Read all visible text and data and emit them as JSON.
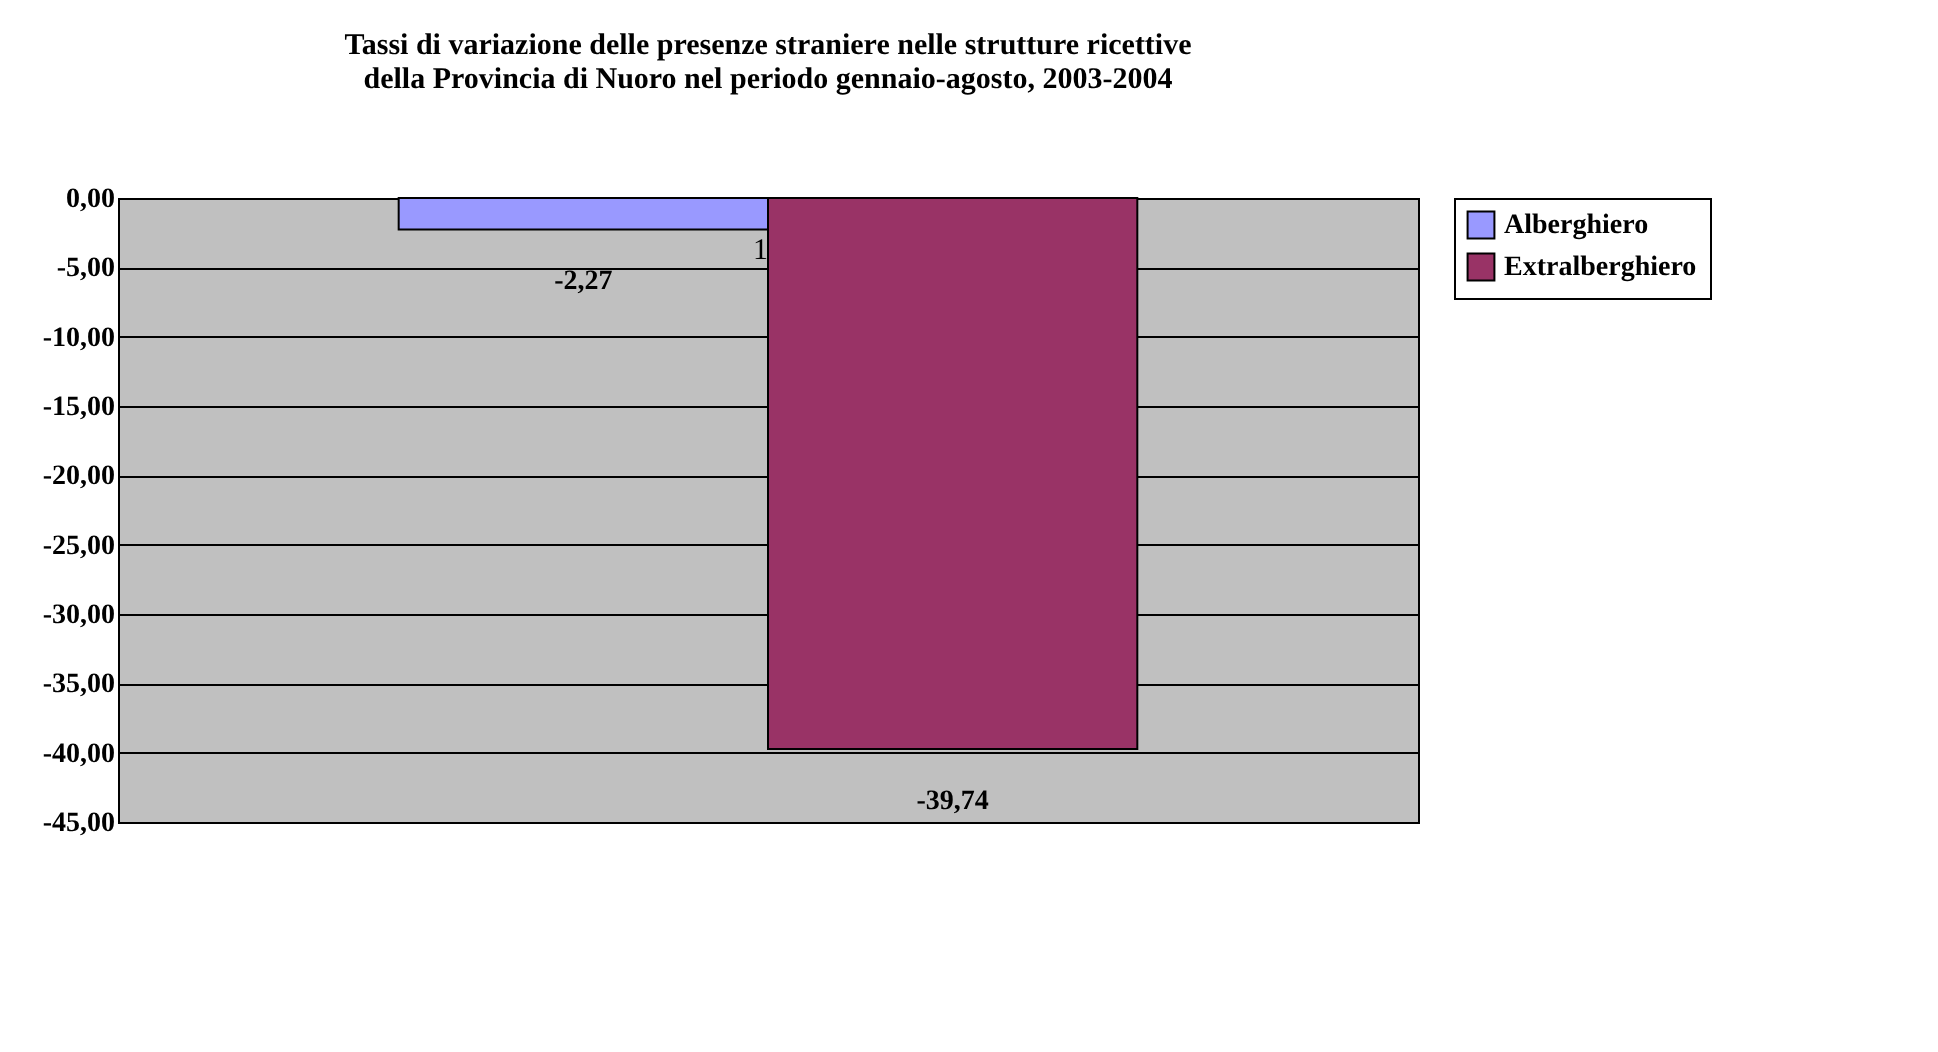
{
  "chart_data": {
    "type": "bar",
    "title": [
      "Tassi di variazione delle presenze straniere nelle strutture ricettive",
      "della Provincia di Nuoro nel periodo gennaio-agosto, 2003-2004"
    ],
    "categories": [
      "1"
    ],
    "series": [
      {
        "name": "Alberghiero",
        "color": "#9999ff",
        "values": [
          -2.27
        ],
        "value_labels": [
          "-2,27"
        ]
      },
      {
        "name": "Extralberghiero",
        "color": "#993366",
        "values": [
          -39.74
        ],
        "value_labels": [
          "-39,74"
        ]
      }
    ],
    "ylim": [
      -45,
      0
    ],
    "yticks": [
      {
        "value": 0,
        "label": "0,00"
      },
      {
        "value": -5,
        "label": "-5,00"
      },
      {
        "value": -10,
        "label": "-10,00"
      },
      {
        "value": -15,
        "label": "-15,00"
      },
      {
        "value": -20,
        "label": "-20,00"
      },
      {
        "value": -25,
        "label": "-25,00"
      },
      {
        "value": -30,
        "label": "-30,00"
      },
      {
        "value": -35,
        "label": "-35,00"
      },
      {
        "value": -40,
        "label": "-40,00"
      },
      {
        "value": -45,
        "label": "-45,00"
      }
    ],
    "grid": "y",
    "legend": "right"
  }
}
